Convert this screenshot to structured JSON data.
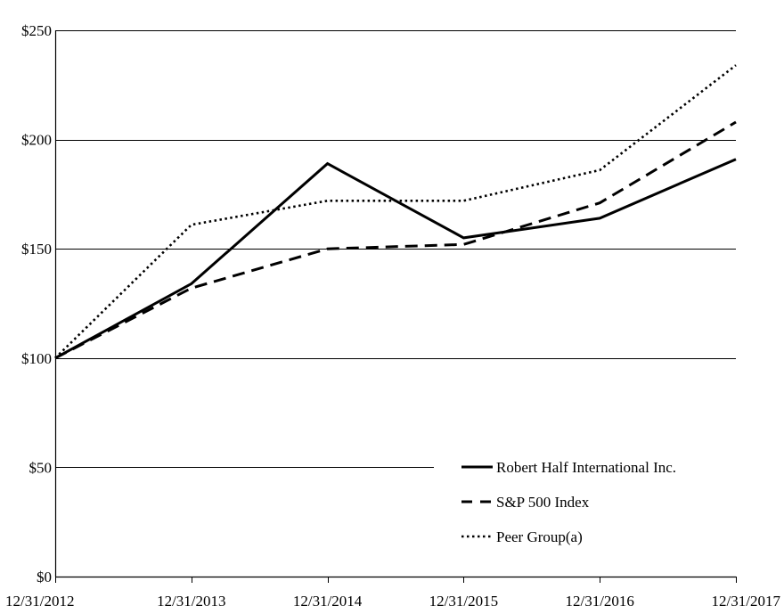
{
  "chart_data": {
    "type": "line",
    "categories": [
      "12/31/2012",
      "12/31/2013",
      "12/31/2014",
      "12/31/2015",
      "12/31/2016",
      "12/31/2017"
    ],
    "y_tick_labels": [
      "$0",
      "$50",
      "$100",
      "$150",
      "$200",
      "$250"
    ],
    "y_ticks": [
      0,
      50,
      100,
      150,
      200,
      250
    ],
    "ylim": [
      0,
      250
    ],
    "grid": true,
    "legend_position": "bottom-right",
    "series": [
      {
        "name": "Robert Half International Inc.",
        "style": "solid",
        "values": [
          100,
          134,
          189,
          155,
          164,
          191
        ]
      },
      {
        "name": "S&P 500 Index",
        "style": "dashed",
        "values": [
          100,
          132,
          150,
          152,
          171,
          208
        ]
      },
      {
        "name": "Peer Group(a)",
        "style": "dotted",
        "values": [
          100,
          161,
          172,
          172,
          186,
          234
        ]
      }
    ],
    "colors": {
      "line": "#000000",
      "grid": "#000000",
      "background": "#ffffff"
    }
  }
}
